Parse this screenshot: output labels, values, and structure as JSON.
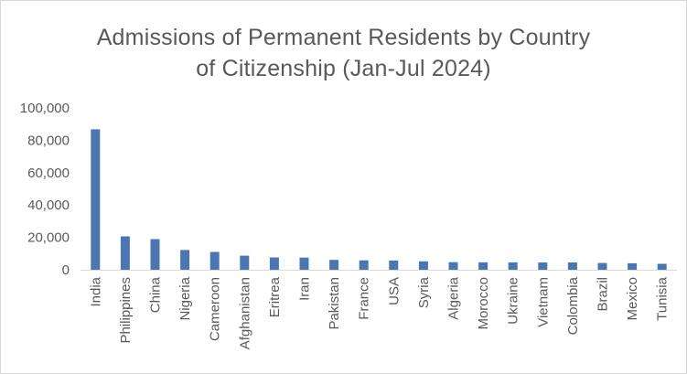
{
  "chart_data": {
    "type": "bar",
    "title": [
      "Admissions of Permanent Residents by Country",
      "of Citizenship (Jan-Jul 2024)"
    ],
    "xlabel": "",
    "ylabel": "",
    "ylim": [
      0,
      100000
    ],
    "yticks": [
      0,
      20000,
      40000,
      60000,
      80000,
      100000
    ],
    "ytick_labels": [
      "0",
      "20,000",
      "40,000",
      "60,000",
      "80,000",
      "100,000"
    ],
    "grid": false,
    "legend": "none",
    "bar_color": "#4a77b4",
    "categories": [
      "India",
      "Philippines",
      "China",
      "Nigeria",
      "Cameroon",
      "Afghanistan",
      "Eritrea",
      "Iran",
      "Pakistan",
      "France",
      "USA",
      "Syria",
      "Algeria",
      "Morocco",
      "Ukraine",
      "Vietnam",
      "Colombia",
      "Brazil",
      "Mexico",
      "Tunisia"
    ],
    "values": [
      86800,
      20600,
      18900,
      12200,
      11000,
      8700,
      7600,
      7500,
      6100,
      5800,
      5700,
      5200,
      4700,
      4600,
      4600,
      4500,
      4500,
      4200,
      4000,
      3700
    ]
  }
}
